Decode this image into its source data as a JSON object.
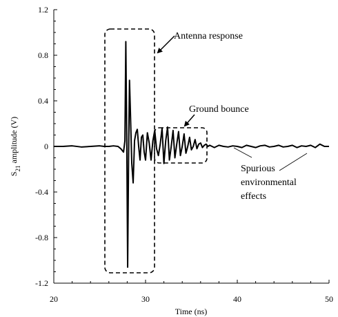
{
  "chart_data": {
    "type": "line",
    "xlabel": "Time (ns)",
    "ylabel": {
      "main": "S",
      "sub": "21",
      "rest": " amplitude (V)"
    },
    "xlim": [
      20,
      50
    ],
    "ylim": [
      -1.2,
      1.2
    ],
    "x_ticks": [
      "20",
      "30",
      "40",
      "50"
    ],
    "y_ticks": [
      "-1.2",
      "-0.8",
      "-0.4",
      "0",
      "0.4",
      "0.8",
      "1.2"
    ],
    "grid": false,
    "series": [
      {
        "x": [
          20,
          21,
          22,
          23,
          24,
          25,
          25.5,
          26,
          26.5,
          27,
          27.3,
          27.6,
          27.75,
          27.85,
          27.95,
          28.05,
          28.15,
          28.25,
          28.35,
          28.5,
          28.65,
          28.8,
          28.95,
          29.1,
          29.25,
          29.4,
          29.55,
          29.7,
          29.85,
          30,
          30.2,
          30.4,
          30.6,
          30.8,
          31,
          31.2,
          31.4,
          31.6,
          31.8,
          32,
          32.2,
          32.4,
          32.6,
          32.8,
          33,
          33.2,
          33.4,
          33.6,
          33.8,
          34,
          34.2,
          34.4,
          34.6,
          34.8,
          35,
          35.2,
          35.4,
          35.6,
          35.8,
          36,
          36.2,
          36.4,
          36.6,
          36.8,
          37,
          37.5,
          38,
          38.5,
          39,
          39.5,
          40,
          40.5,
          41,
          41.5,
          42,
          42.5,
          43,
          43.5,
          44,
          44.5,
          45,
          45.5,
          46,
          46.5,
          47,
          47.5,
          48,
          48.5,
          49,
          49.5,
          50
        ],
        "y": [
          0,
          0,
          0.005,
          -0.005,
          0,
          0.005,
          0,
          0,
          0.005,
          0,
          -0.02,
          -0.05,
          0.05,
          0.92,
          0.1,
          -1.06,
          -0.1,
          0.58,
          0.3,
          -0.15,
          -0.32,
          0.05,
          0.12,
          0.15,
          0.0,
          -0.12,
          0.08,
          0.1,
          -0.05,
          -0.12,
          0.12,
          0.03,
          -0.12,
          0.05,
          0.14,
          -0.02,
          -0.08,
          0.02,
          0.16,
          -0.15,
          0.05,
          0.17,
          -0.12,
          0.0,
          0.14,
          -0.1,
          0.02,
          0.13,
          -0.08,
          0.0,
          0.11,
          -0.06,
          0.0,
          0.08,
          -0.03,
          0.0,
          0.06,
          -0.02,
          0.02,
          0.03,
          -0.01,
          0.01,
          0.02,
          0.0,
          0.01,
          -0.01,
          0.01,
          0.0,
          -0.005,
          0.005,
          0.0,
          -0.01,
          0.01,
          0.0,
          -0.01,
          0.005,
          0.01,
          -0.005,
          0.0,
          0.01,
          -0.005,
          0.0,
          0.01,
          -0.01,
          0.005,
          0.0,
          0.01,
          -0.01,
          0.02,
          0.0,
          0.0
        ]
      }
    ],
    "annotations": [
      {
        "text": "Antenna response"
      },
      {
        "text": "Ground bounce"
      },
      {
        "lines": [
          "Spurious",
          "environmental",
          "effects"
        ]
      }
    ]
  }
}
